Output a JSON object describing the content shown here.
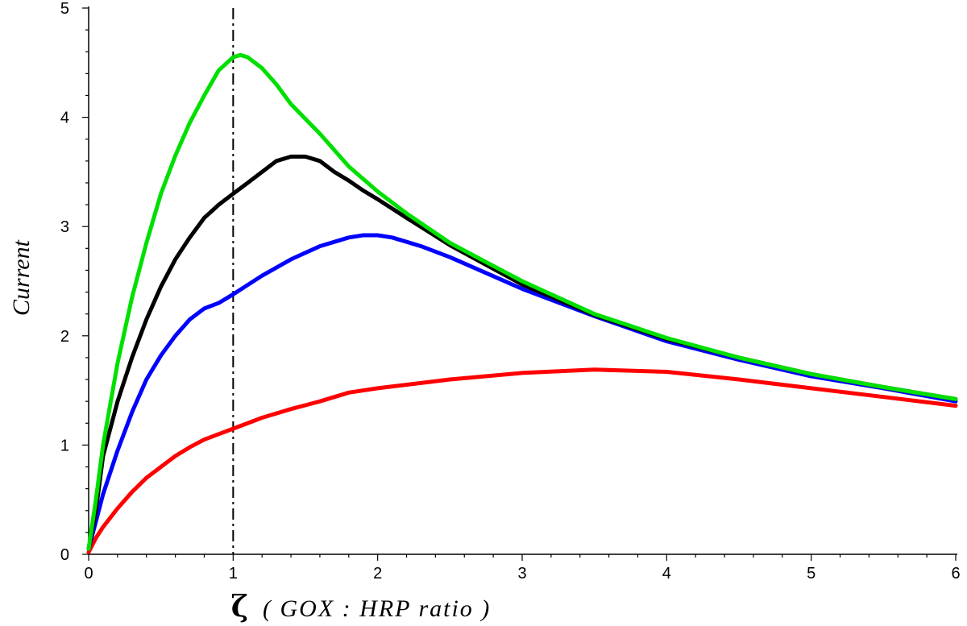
{
  "chart_data": {
    "type": "line",
    "title": "",
    "ylabel": "Current",
    "xlabel_symbol": "ζ",
    "xlabel_text": "( GOX : HRP ratio )",
    "xlim": [
      0,
      6
    ],
    "ylim": [
      0,
      5
    ],
    "x_ticks": [
      0,
      1,
      2,
      3,
      4,
      5,
      6
    ],
    "y_ticks": [
      0,
      1,
      2,
      3,
      4,
      5
    ],
    "grid": false,
    "reference_line": {
      "x": 1,
      "style": "dash-dot",
      "color": "#000000"
    },
    "series": [
      {
        "color": "#00e000",
        "points": [
          [
            0,
            0.05
          ],
          [
            0.05,
            0.5
          ],
          [
            0.1,
            1.0
          ],
          [
            0.2,
            1.75
          ],
          [
            0.3,
            2.35
          ],
          [
            0.4,
            2.85
          ],
          [
            0.5,
            3.3
          ],
          [
            0.6,
            3.65
          ],
          [
            0.7,
            3.95
          ],
          [
            0.8,
            4.2
          ],
          [
            0.9,
            4.43
          ],
          [
            1.0,
            4.55
          ],
          [
            1.05,
            4.57
          ],
          [
            1.1,
            4.55
          ],
          [
            1.2,
            4.45
          ],
          [
            1.3,
            4.3
          ],
          [
            1.4,
            4.12
          ],
          [
            1.6,
            3.85
          ],
          [
            1.8,
            3.55
          ],
          [
            2.0,
            3.32
          ],
          [
            2.2,
            3.12
          ],
          [
            2.5,
            2.85
          ],
          [
            3.0,
            2.5
          ],
          [
            3.5,
            2.2
          ],
          [
            4.0,
            1.98
          ],
          [
            4.5,
            1.8
          ],
          [
            5.0,
            1.65
          ],
          [
            5.5,
            1.53
          ],
          [
            6.0,
            1.42
          ]
        ]
      },
      {
        "color": "#000000",
        "points": [
          [
            0,
            0.05
          ],
          [
            0.05,
            0.4
          ],
          [
            0.1,
            0.9
          ],
          [
            0.2,
            1.4
          ],
          [
            0.3,
            1.8
          ],
          [
            0.4,
            2.15
          ],
          [
            0.5,
            2.45
          ],
          [
            0.6,
            2.7
          ],
          [
            0.7,
            2.9
          ],
          [
            0.8,
            3.08
          ],
          [
            0.9,
            3.2
          ],
          [
            1.0,
            3.3
          ],
          [
            1.1,
            3.4
          ],
          [
            1.2,
            3.5
          ],
          [
            1.3,
            3.6
          ],
          [
            1.4,
            3.64
          ],
          [
            1.5,
            3.64
          ],
          [
            1.6,
            3.6
          ],
          [
            1.7,
            3.5
          ],
          [
            1.8,
            3.42
          ],
          [
            1.9,
            3.33
          ],
          [
            2.0,
            3.25
          ],
          [
            2.2,
            3.08
          ],
          [
            2.5,
            2.83
          ],
          [
            3.0,
            2.47
          ],
          [
            3.5,
            2.19
          ],
          [
            4.0,
            1.97
          ],
          [
            4.5,
            1.8
          ],
          [
            5.0,
            1.65
          ],
          [
            5.5,
            1.53
          ],
          [
            6.0,
            1.42
          ]
        ]
      },
      {
        "color": "#0000ff",
        "points": [
          [
            0,
            0.05
          ],
          [
            0.05,
            0.3
          ],
          [
            0.1,
            0.55
          ],
          [
            0.2,
            0.95
          ],
          [
            0.3,
            1.3
          ],
          [
            0.4,
            1.6
          ],
          [
            0.5,
            1.82
          ],
          [
            0.6,
            2.0
          ],
          [
            0.7,
            2.15
          ],
          [
            0.8,
            2.25
          ],
          [
            0.9,
            2.3
          ],
          [
            1.0,
            2.38
          ],
          [
            1.2,
            2.55
          ],
          [
            1.4,
            2.7
          ],
          [
            1.6,
            2.82
          ],
          [
            1.8,
            2.9
          ],
          [
            1.9,
            2.92
          ],
          [
            2.0,
            2.92
          ],
          [
            2.1,
            2.9
          ],
          [
            2.3,
            2.82
          ],
          [
            2.5,
            2.72
          ],
          [
            3.0,
            2.43
          ],
          [
            3.5,
            2.18
          ],
          [
            4.0,
            1.95
          ],
          [
            4.5,
            1.78
          ],
          [
            5.0,
            1.63
          ],
          [
            5.5,
            1.52
          ],
          [
            6.0,
            1.4
          ]
        ]
      },
      {
        "color": "#ff0000",
        "points": [
          [
            0,
            0.02
          ],
          [
            0.05,
            0.15
          ],
          [
            0.1,
            0.25
          ],
          [
            0.2,
            0.42
          ],
          [
            0.3,
            0.57
          ],
          [
            0.4,
            0.7
          ],
          [
            0.5,
            0.8
          ],
          [
            0.6,
            0.9
          ],
          [
            0.7,
            0.98
          ],
          [
            0.8,
            1.05
          ],
          [
            0.9,
            1.1
          ],
          [
            1.0,
            1.15
          ],
          [
            1.2,
            1.25
          ],
          [
            1.4,
            1.33
          ],
          [
            1.6,
            1.4
          ],
          [
            1.8,
            1.48
          ],
          [
            2.0,
            1.52
          ],
          [
            2.5,
            1.6
          ],
          [
            3.0,
            1.66
          ],
          [
            3.5,
            1.69
          ],
          [
            4.0,
            1.67
          ],
          [
            4.5,
            1.6
          ],
          [
            5.0,
            1.52
          ],
          [
            5.5,
            1.44
          ],
          [
            6.0,
            1.36
          ]
        ]
      }
    ]
  }
}
